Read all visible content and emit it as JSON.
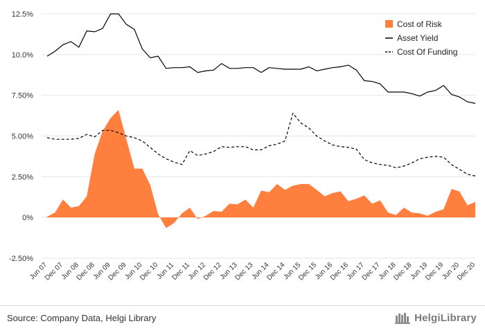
{
  "chart_data": {
    "type": "line",
    "y_ticks": [
      "12.5%",
      "10.0%",
      "7.50%",
      "5.00%",
      "2.50%",
      "0%",
      "-2.50%"
    ],
    "ylim": [
      -2.5,
      12.5
    ],
    "grid": "horizontal",
    "legend_position": "top-right",
    "x_labels": [
      "Jun 07",
      "Dec 07",
      "Jun 08",
      "Dec 08",
      "Jun 09",
      "Dec 09",
      "Jun 10",
      "Dec 10",
      "Jun 11",
      "Dec 11",
      "Jun 12",
      "Dec 12",
      "Jun 13",
      "Dec 13",
      "Jun 14",
      "Dec 14",
      "Jun 15",
      "Dec 15",
      "Jun 16",
      "Dec 16",
      "Jun 17",
      "Dec 17",
      "Jun 18",
      "Dec 18",
      "Jun 19",
      "Dec 19",
      "Jun 20",
      "Dec 20"
    ],
    "series": [
      {
        "name": "Cost of Risk",
        "kind": "area",
        "color": "#ff7f3f",
        "values": [
          0.05,
          0.3,
          1.1,
          0.6,
          0.7,
          1.3,
          3.9,
          5.3,
          6.1,
          6.6,
          4.8,
          3.0,
          3.0,
          2.0,
          0.2,
          -0.65,
          -0.35,
          0.25,
          0.6,
          -0.1,
          0.1,
          0.4,
          0.35,
          0.85,
          0.8,
          1.1,
          0.6,
          1.65,
          1.55,
          2.05,
          1.7,
          1.95,
          2.05,
          2.05,
          1.7,
          1.3,
          1.5,
          1.6,
          1.0,
          1.15,
          1.35,
          0.85,
          1.05,
          0.3,
          0.15,
          0.6,
          0.3,
          0.25,
          0.1,
          0.35,
          0.5,
          1.75,
          1.6,
          0.75,
          0.95
        ]
      },
      {
        "name": "Asset Yield",
        "kind": "line",
        "color": "#000000",
        "values": [
          9.9,
          10.2,
          10.6,
          10.8,
          10.45,
          11.45,
          11.4,
          11.6,
          12.5,
          12.5,
          11.85,
          11.55,
          10.35,
          9.8,
          9.9,
          9.15,
          9.2,
          9.2,
          9.25,
          8.9,
          9.0,
          9.05,
          9.45,
          9.15,
          9.15,
          9.2,
          9.2,
          8.9,
          9.2,
          9.15,
          9.1,
          9.1,
          9.1,
          9.25,
          9.0,
          9.1,
          9.2,
          9.25,
          9.35,
          9.05,
          8.4,
          8.35,
          8.2,
          7.7,
          7.7,
          7.7,
          7.6,
          7.45,
          7.7,
          7.8,
          8.1,
          7.55,
          7.4,
          7.1,
          7.0
        ]
      },
      {
        "name": "Cost Of Funding",
        "kind": "dashed-line",
        "color": "#000000",
        "values": [
          4.9,
          4.8,
          4.8,
          4.8,
          4.85,
          5.1,
          4.95,
          5.35,
          5.35,
          5.2,
          5.0,
          4.9,
          4.7,
          4.3,
          3.9,
          3.6,
          3.4,
          3.25,
          4.1,
          3.8,
          3.9,
          4.05,
          4.35,
          4.3,
          4.35,
          4.35,
          4.15,
          4.15,
          4.4,
          4.5,
          4.7,
          6.4,
          5.8,
          5.5,
          5.0,
          4.7,
          4.45,
          4.35,
          4.3,
          4.2,
          3.55,
          3.35,
          3.25,
          3.2,
          3.05,
          3.15,
          3.35,
          3.6,
          3.7,
          3.75,
          3.7,
          3.25,
          2.95,
          2.65,
          2.55
        ]
      }
    ]
  },
  "footer": {
    "source": "Source: Company Data, Helgi Library",
    "logo_text": "HelgiLibrary"
  }
}
